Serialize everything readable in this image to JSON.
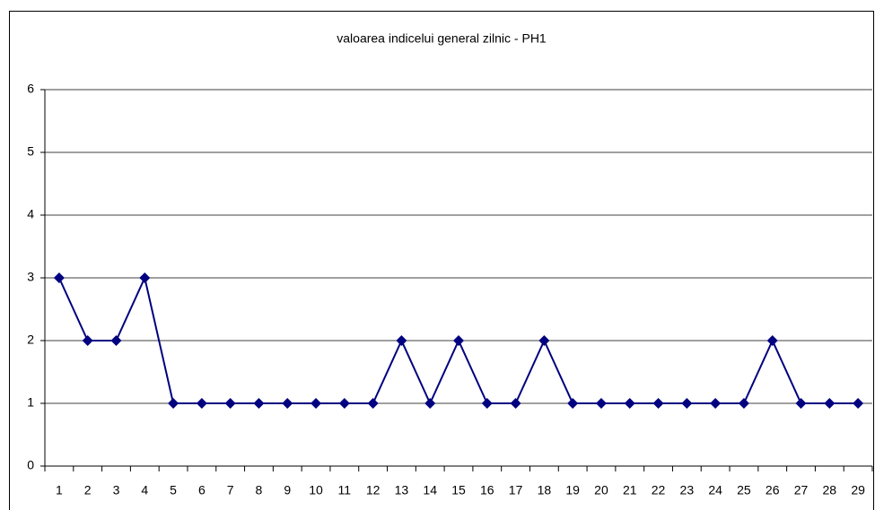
{
  "chart_data": {
    "type": "line",
    "title": "valoarea indicelui general zilnic - PH1",
    "categories": [
      "1",
      "2",
      "3",
      "4",
      "5",
      "6",
      "7",
      "8",
      "9",
      "10",
      "11",
      "12",
      "13",
      "14",
      "15",
      "16",
      "17",
      "18",
      "19",
      "20",
      "21",
      "22",
      "23",
      "24",
      "25",
      "26",
      "27",
      "28",
      "29"
    ],
    "series": [
      {
        "name": "PH1",
        "color": "#000080",
        "values": [
          3,
          2,
          2,
          3,
          1,
          1,
          1,
          1,
          1,
          1,
          1,
          1,
          2,
          1,
          2,
          1,
          1,
          2,
          1,
          1,
          1,
          1,
          1,
          1,
          1,
          2,
          1,
          1,
          1
        ]
      }
    ],
    "ylim": [
      0,
      6
    ],
    "yticks": [
      0,
      1,
      2,
      3,
      4,
      5,
      6
    ],
    "grid": true,
    "marker": "diamond"
  }
}
